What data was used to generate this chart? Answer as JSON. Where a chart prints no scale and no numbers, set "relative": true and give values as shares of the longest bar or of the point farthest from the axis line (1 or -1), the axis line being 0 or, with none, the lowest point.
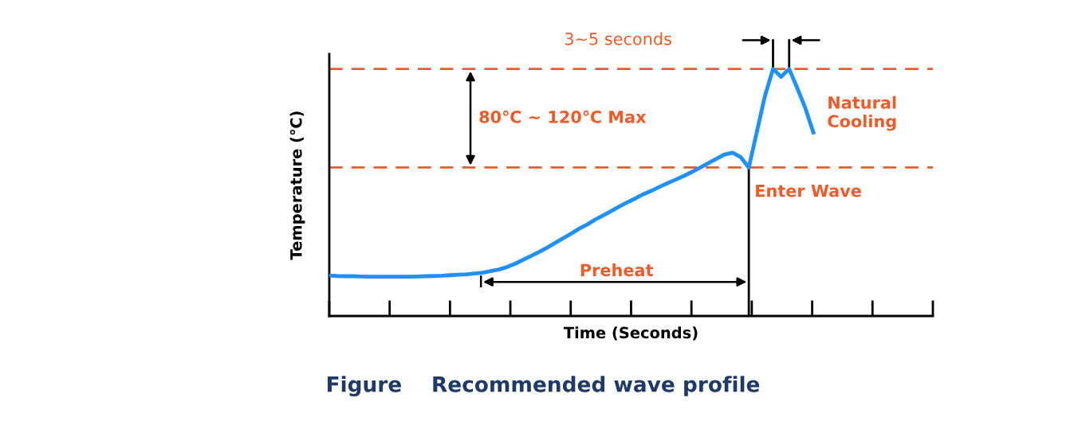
{
  "chart_data": {
    "type": "line",
    "relative": true,
    "xlabel": "Time (Seconds)",
    "ylabel": "Temperature (℃)",
    "title": "Figure    Recommended wave profile",
    "categories": [
      null,
      null,
      null,
      null,
      null,
      null,
      null,
      null,
      null,
      null,
      null,
      null,
      null,
      null,
      null,
      null,
      null,
      null,
      null,
      null,
      null,
      null,
      null,
      null,
      null,
      null,
      null,
      null,
      null,
      null,
      null,
      null,
      null,
      null,
      null,
      null,
      null,
      null,
      null,
      null,
      null,
      null,
      null,
      null,
      null,
      null,
      null,
      null,
      null,
      null,
      null,
      null,
      null,
      null,
      null,
      null,
      null,
      null,
      null,
      null,
      null
    ],
    "series": [
      {
        "color": "#1e90ff",
        "values": [
          0.164,
          0.162,
          0.161,
          0.161,
          0.16,
          0.159,
          0.159,
          0.159,
          0.159,
          0.159,
          0.159,
          0.16,
          0.161,
          0.162,
          0.163,
          0.165,
          0.167,
          0.169,
          0.172,
          0.175,
          0.182,
          0.188,
          0.198,
          0.211,
          0.227,
          0.243,
          0.259,
          0.277,
          0.296,
          0.315,
          0.334,
          0.354,
          0.371,
          0.391,
          0.408,
          0.426,
          0.444,
          0.461,
          0.477,
          0.494,
          0.508,
          0.524,
          0.539,
          0.553,
          0.568,
          0.584,
          0.601,
          0.619,
          0.637,
          0.654,
          0.661,
          0.643,
          0.601,
          0.746,
          0.891,
          1.0,
          0.968,
          1.0,
          0.923,
          0.842,
          0.743
        ]
      }
    ],
    "grid": false,
    "marker": "none",
    "line_style": "solid",
    "ref_lines": [
      {
        "axis": "y",
        "value": 1.0,
        "color": "#f05a28",
        "line_style": "dashed"
      },
      {
        "axis": "y",
        "value": 0.601,
        "color": "#f05a28",
        "line_style": "dashed"
      }
    ],
    "annotations": [
      "3~5 seconds",
      "80℃ ~ 120℃ Max",
      "Natural\nCooling",
      "Enter Wave",
      "Preheat"
    ]
  }
}
